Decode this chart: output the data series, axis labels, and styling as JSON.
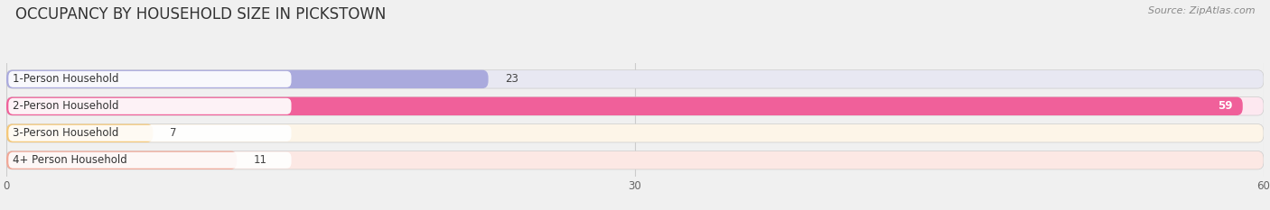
{
  "title": "OCCUPANCY BY HOUSEHOLD SIZE IN PICKSTOWN",
  "source": "Source: ZipAtlas.com",
  "categories": [
    "1-Person Household",
    "2-Person Household",
    "3-Person Household",
    "4+ Person Household"
  ],
  "values": [
    23,
    59,
    7,
    11
  ],
  "bar_colors": [
    "#aaaadd",
    "#f0609a",
    "#f5c878",
    "#f0a898"
  ],
  "bar_bg_colors": [
    "#e8e8f2",
    "#fde8f0",
    "#fdf5e8",
    "#fce8e4"
  ],
  "label_bg_colors": [
    "#ffffff",
    "#ffffff",
    "#ffffff",
    "#ffffff"
  ],
  "xlim": [
    0,
    60
  ],
  "xticks": [
    0,
    30,
    60
  ],
  "bg_color": "#f0f0f0",
  "title_fontsize": 12,
  "label_fontsize": 8.5,
  "value_fontsize": 8.5,
  "source_fontsize": 8
}
